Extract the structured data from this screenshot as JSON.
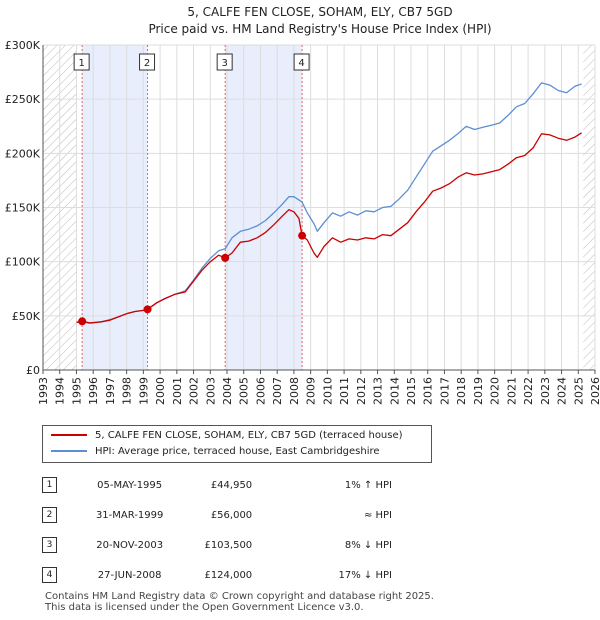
{
  "chart_data": {
    "type": "line",
    "title": "5, CALFE FEN CLOSE, SOHAM, ELY, CB7 5GD",
    "subtitle": "Price paid vs. HM Land Registry's House Price Index (HPI)",
    "xlim": [
      1993,
      2026
    ],
    "ylim": [
      0,
      300000
    ],
    "x_ticks": [
      "1993",
      "1994",
      "1995",
      "1996",
      "1997",
      "1998",
      "1999",
      "2000",
      "2001",
      "2002",
      "2003",
      "2004",
      "2005",
      "2006",
      "2007",
      "2008",
      "2009",
      "2010",
      "2011",
      "2012",
      "2013",
      "2014",
      "2015",
      "2016",
      "2017",
      "2018",
      "2019",
      "2020",
      "2021",
      "2022",
      "2023",
      "2024",
      "2025",
      "2026"
    ],
    "y_ticks": [
      {
        "value": 0,
        "label": "£0"
      },
      {
        "value": 50000,
        "label": "£50K"
      },
      {
        "value": 100000,
        "label": "£100K"
      },
      {
        "value": 150000,
        "label": "£150K"
      },
      {
        "value": 200000,
        "label": "£200K"
      },
      {
        "value": 250000,
        "label": "£250K"
      },
      {
        "value": 300000,
        "label": "£300K"
      }
    ],
    "hatch_ranges": [
      [
        1993,
        1995.0
      ],
      [
        2025.3,
        2026
      ]
    ],
    "shaded_ranges": [
      [
        1995.34,
        1999.25
      ],
      [
        2003.89,
        2008.49
      ]
    ],
    "series": [
      {
        "name": "5, CALFE FEN CLOSE, SOHAM, ELY, CB7 5GD (terraced house)",
        "color": "#cc0000",
        "points": [
          [
            1995.0,
            44000
          ],
          [
            1995.34,
            44950
          ],
          [
            1995.8,
            43500
          ],
          [
            1996.5,
            44500
          ],
          [
            1997.0,
            46000
          ],
          [
            1997.5,
            49000
          ],
          [
            1998.0,
            52000
          ],
          [
            1998.5,
            54000
          ],
          [
            1999.0,
            55000
          ],
          [
            1999.25,
            56000
          ],
          [
            1999.8,
            62000
          ],
          [
            2000.3,
            66000
          ],
          [
            2000.9,
            70000
          ],
          [
            2001.5,
            72000
          ],
          [
            2002.0,
            82000
          ],
          [
            2002.5,
            92000
          ],
          [
            2003.0,
            100000
          ],
          [
            2003.5,
            106000
          ],
          [
            2003.89,
            103500
          ],
          [
            2004.3,
            108000
          ],
          [
            2004.8,
            118000
          ],
          [
            2005.3,
            119000
          ],
          [
            2005.8,
            122000
          ],
          [
            2006.3,
            127000
          ],
          [
            2006.8,
            134000
          ],
          [
            2007.3,
            142000
          ],
          [
            2007.7,
            148000
          ],
          [
            2008.0,
            146000
          ],
          [
            2008.3,
            140000
          ],
          [
            2008.49,
            124000
          ],
          [
            2008.8,
            120000
          ],
          [
            2009.2,
            108000
          ],
          [
            2009.4,
            104000
          ],
          [
            2009.8,
            114000
          ],
          [
            2010.3,
            122000
          ],
          [
            2010.8,
            118000
          ],
          [
            2011.3,
            121000
          ],
          [
            2011.8,
            120000
          ],
          [
            2012.3,
            122000
          ],
          [
            2012.8,
            121000
          ],
          [
            2013.3,
            125000
          ],
          [
            2013.8,
            124000
          ],
          [
            2014.3,
            130000
          ],
          [
            2014.8,
            136000
          ],
          [
            2015.3,
            146000
          ],
          [
            2015.8,
            155000
          ],
          [
            2016.3,
            165000
          ],
          [
            2016.8,
            168000
          ],
          [
            2017.3,
            172000
          ],
          [
            2017.8,
            178000
          ],
          [
            2018.3,
            182000
          ],
          [
            2018.8,
            180000
          ],
          [
            2019.3,
            181000
          ],
          [
            2019.8,
            183000
          ],
          [
            2020.3,
            185000
          ],
          [
            2020.8,
            190000
          ],
          [
            2021.3,
            196000
          ],
          [
            2021.8,
            198000
          ],
          [
            2022.3,
            205000
          ],
          [
            2022.8,
            218000
          ],
          [
            2023.3,
            217000
          ],
          [
            2023.8,
            214000
          ],
          [
            2024.3,
            212000
          ],
          [
            2024.8,
            215000
          ],
          [
            2025.2,
            219000
          ]
        ]
      },
      {
        "name": "HPI: Average price, terraced house, East Cambridgeshire",
        "color": "#5b8fd4",
        "points": [
          [
            1995.0,
            44000
          ],
          [
            1995.34,
            44500
          ],
          [
            1995.8,
            43000
          ],
          [
            1996.5,
            44500
          ],
          [
            1997.0,
            46500
          ],
          [
            1997.5,
            49000
          ],
          [
            1998.0,
            52000
          ],
          [
            1998.5,
            54000
          ],
          [
            1999.0,
            55000
          ],
          [
            1999.25,
            56000
          ],
          [
            1999.8,
            62000
          ],
          [
            2000.3,
            66000
          ],
          [
            2000.9,
            70000
          ],
          [
            2001.5,
            73000
          ],
          [
            2002.0,
            83000
          ],
          [
            2002.5,
            94000
          ],
          [
            2003.0,
            103000
          ],
          [
            2003.5,
            110000
          ],
          [
            2003.89,
            112000
          ],
          [
            2004.3,
            122000
          ],
          [
            2004.8,
            128000
          ],
          [
            2005.3,
            130000
          ],
          [
            2005.8,
            133000
          ],
          [
            2006.3,
            138000
          ],
          [
            2006.8,
            145000
          ],
          [
            2007.3,
            153000
          ],
          [
            2007.7,
            160000
          ],
          [
            2008.0,
            160000
          ],
          [
            2008.49,
            155000
          ],
          [
            2008.8,
            145000
          ],
          [
            2009.2,
            135000
          ],
          [
            2009.4,
            128000
          ],
          [
            2009.8,
            136000
          ],
          [
            2010.3,
            145000
          ],
          [
            2010.8,
            142000
          ],
          [
            2011.3,
            146000
          ],
          [
            2011.8,
            143000
          ],
          [
            2012.3,
            147000
          ],
          [
            2012.8,
            146000
          ],
          [
            2013.3,
            150000
          ],
          [
            2013.8,
            151000
          ],
          [
            2014.3,
            158000
          ],
          [
            2014.8,
            166000
          ],
          [
            2015.3,
            178000
          ],
          [
            2015.8,
            190000
          ],
          [
            2016.3,
            202000
          ],
          [
            2016.8,
            207000
          ],
          [
            2017.3,
            212000
          ],
          [
            2017.8,
            218000
          ],
          [
            2018.3,
            225000
          ],
          [
            2018.8,
            222000
          ],
          [
            2019.3,
            224000
          ],
          [
            2019.8,
            226000
          ],
          [
            2020.3,
            228000
          ],
          [
            2020.8,
            235000
          ],
          [
            2021.3,
            243000
          ],
          [
            2021.8,
            246000
          ],
          [
            2022.3,
            255000
          ],
          [
            2022.8,
            265000
          ],
          [
            2023.3,
            263000
          ],
          [
            2023.8,
            258000
          ],
          [
            2024.3,
            256000
          ],
          [
            2024.8,
            262000
          ],
          [
            2025.2,
            264000
          ]
        ]
      }
    ],
    "transactions": [
      {
        "num": "1",
        "x": 1995.34,
        "price": 44950
      },
      {
        "num": "2",
        "x": 1999.25,
        "price": 56000
      },
      {
        "num": "3",
        "x": 2003.89,
        "price": 103500
      },
      {
        "num": "4",
        "x": 2008.49,
        "price": 124000
      }
    ]
  },
  "legend": {
    "property_label": "5, CALFE FEN CLOSE, SOHAM, ELY, CB7 5GD (terraced house)",
    "property_color": "#cc0000",
    "hpi_label": "HPI: Average price, terraced house, East Cambridgeshire",
    "hpi_color": "#5b8fd4"
  },
  "table": {
    "rows": [
      {
        "num": "1",
        "date": "05-MAY-1995",
        "price": "£44,950",
        "relation": "1% ↑ HPI"
      },
      {
        "num": "2",
        "date": "31-MAR-1999",
        "price": "£56,000",
        "relation": "≈ HPI"
      },
      {
        "num": "3",
        "date": "20-NOV-2003",
        "price": "£103,500",
        "relation": "8% ↓ HPI"
      },
      {
        "num": "4",
        "date": "27-JUN-2008",
        "price": "£124,000",
        "relation": "17% ↓ HPI"
      }
    ]
  },
  "footer": {
    "line1": "Contains HM Land Registry data © Crown copyright and database right 2025.",
    "line2": "This data is licensed under the Open Government Licence v3.0."
  }
}
